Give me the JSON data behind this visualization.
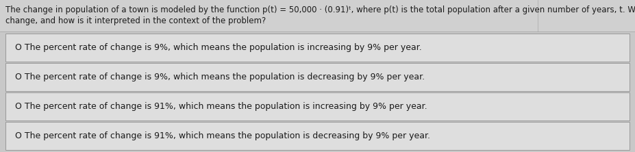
{
  "background_color": "#c8c8c8",
  "question_bg_color": "#d0d0d0",
  "option_box_color": "#dedede",
  "option_border_color": "#999999",
  "text_color": "#1a1a1a",
  "question_line1": "The change in population of a town is modeled by the function p(t) = 50,000 · (0.91)ᵗ, where p(t) is the total population after a given number of years, t. What is the percent rate of",
  "question_line2": "change, and how is it interpreted in the context of the problem?",
  "options": [
    "O The percent rate of change is 9%, which means the population is increasing by 9% per year.",
    "O The percent rate of change is 9%, which means the population is decreasing by 9% per year.",
    "O The percent rate of change is 91%, which means the population is increasing by 9% per year.",
    "O The percent rate of change is 91%, which means the population is decreasing by 9% per year."
  ],
  "font_size": 9.0,
  "question_font_size": 8.5,
  "fig_width": 9.27,
  "fig_height": 2.22,
  "dpi": 100
}
